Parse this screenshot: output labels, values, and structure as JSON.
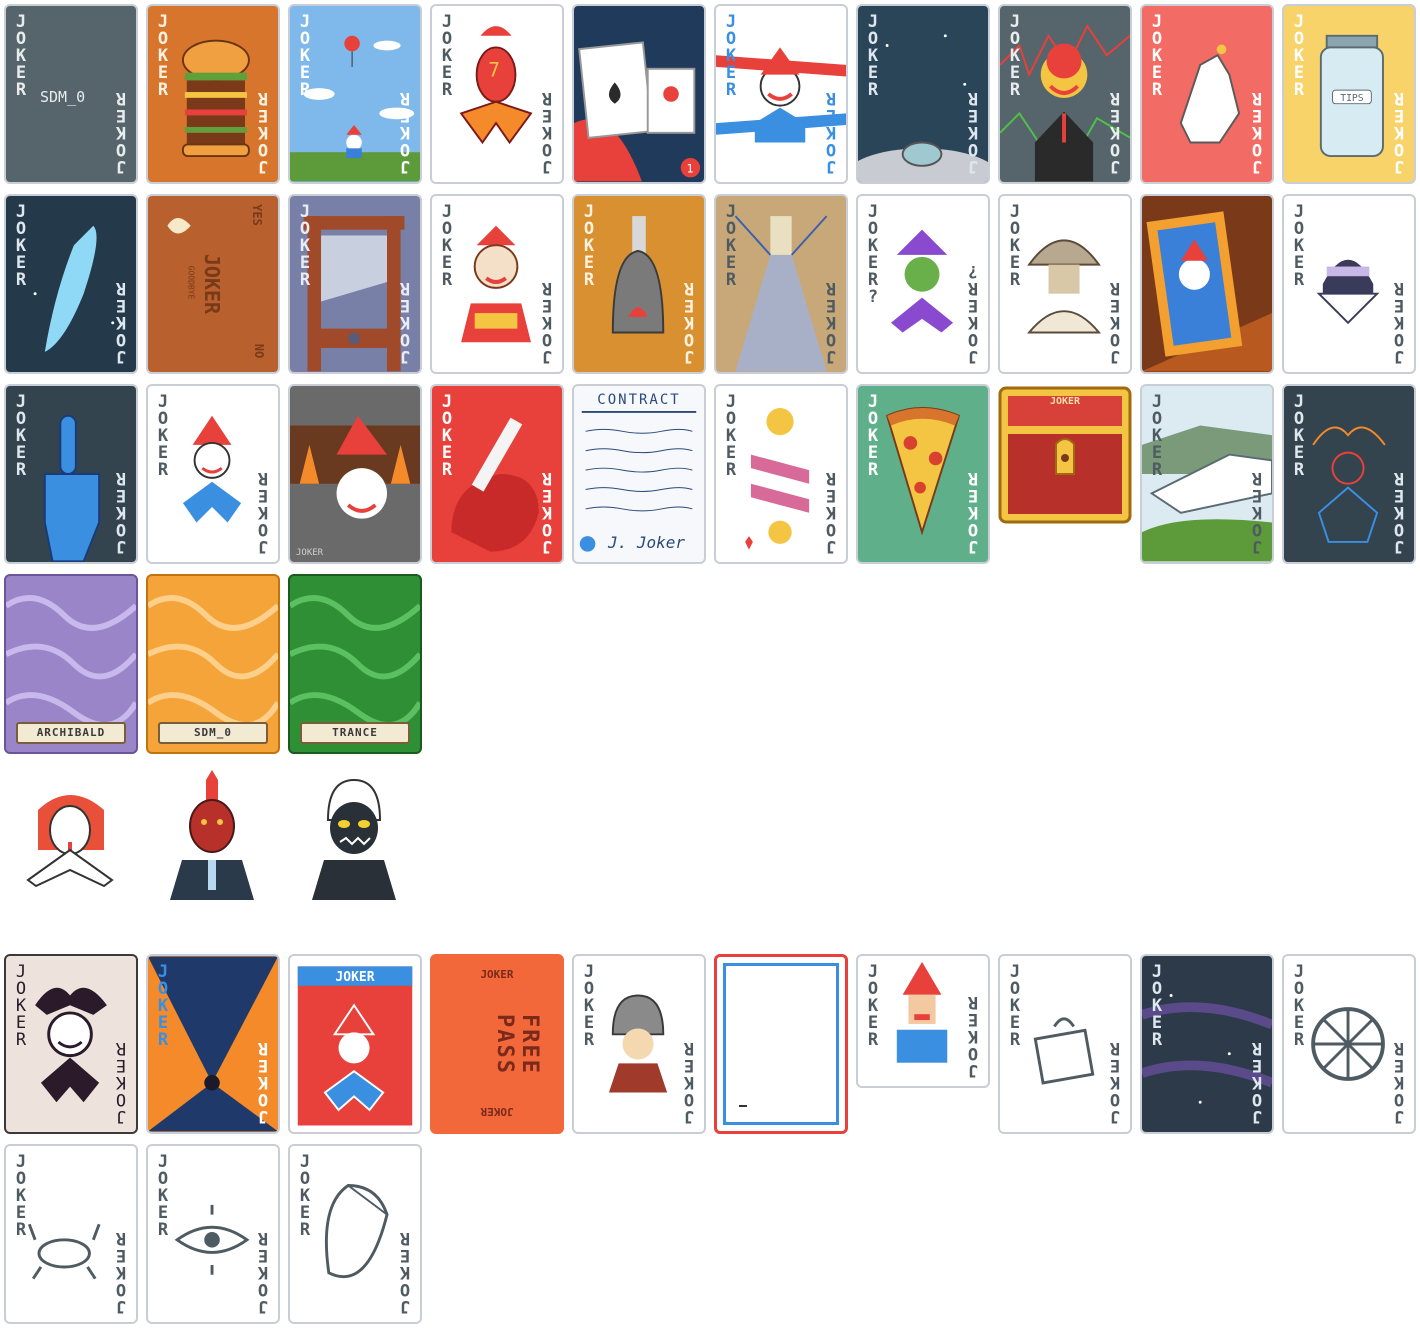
{
  "card_label": "JOKER",
  "card_label_question": "JOKER?",
  "cards": {
    "r1c1": {
      "title": "SDM_0"
    },
    "contract": {
      "heading": "CONTRACT",
      "signature": "J. Joker"
    },
    "chest": {
      "label": "JOKER"
    },
    "ticket_top": {
      "label": "JOKER"
    },
    "free_pass": {
      "top": "JOKER",
      "main": "FREE PASS",
      "bottom": "JOKER"
    },
    "scroll_card": {
      "top": "JOKER",
      "middle": "YES",
      "bottom": "NO",
      "bye": "GOODBYE"
    }
  },
  "decks": [
    {
      "name": "ARCHIBALD",
      "color": "#9b85c9"
    },
    {
      "name": "SDM_0",
      "color": "#f5a43a"
    },
    {
      "name": "TRANCE",
      "color": "#2f8f35"
    }
  ],
  "colors": {
    "border": "#c9ced6",
    "dark_slate": "#56656b",
    "label_gray": "#4f5b62",
    "orange": "#d8752c",
    "sky": "#7fb8ea",
    "red": "#e8403a",
    "teal": "#5fb08a",
    "gold": "#f4c542"
  },
  "portraits": [
    "red-hair-figure",
    "rooster-suit-figure",
    "horned-shadow-figure"
  ]
}
